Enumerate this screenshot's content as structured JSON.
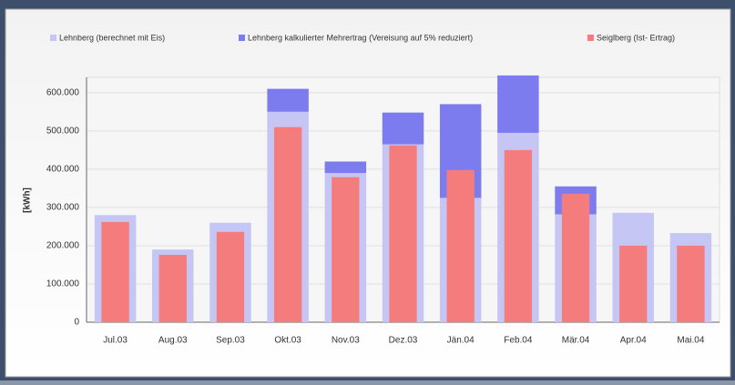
{
  "chart_data": {
    "type": "bar",
    "y_label": "[kWh]",
    "categories": [
      "Jul.03",
      "Aug.03",
      "Sep.03",
      "Okt.03",
      "Nov.03",
      "Dez.03",
      "Jän.04",
      "Feb.04",
      "Mär.04",
      "Apr.04",
      "Mai.04"
    ],
    "series": [
      {
        "name": "Lehnberg (berechnet mit Eis)",
        "color": "#c6c6f4",
        "values": [
          280000,
          190000,
          260000,
          550000,
          390000,
          465000,
          325000,
          495000,
          282000,
          286000,
          233000
        ]
      },
      {
        "name": "Lehnberg kalkulierter Mehrertrag (Vereisung auf 5% reduziert)",
        "color": "#7c7cef",
        "values": [
          null,
          null,
          null,
          60000,
          30000,
          83000,
          245000,
          150000,
          73000,
          null,
          null
        ]
      },
      {
        "name": "Seiglberg (Ist- Ertrag)",
        "color": "#f47c7c",
        "values": [
          262000,
          176000,
          236000,
          510000,
          379000,
          462000,
          398000,
          450000,
          336000,
          200000,
          200000
        ]
      }
    ],
    "ylim": [
      0,
      640000
    ],
    "yticks": [
      0,
      {
        "value": 100000,
        "label": "100.000"
      },
      {
        "value": 200000,
        "label": "200.000"
      },
      {
        "value": 300000,
        "label": "300.000"
      },
      {
        "value": 400000,
        "label": "400.000"
      },
      {
        "value": 500000,
        "label": "500.000"
      },
      {
        "value": 600000,
        "label": "600.000"
      }
    ],
    "grid": true
  }
}
